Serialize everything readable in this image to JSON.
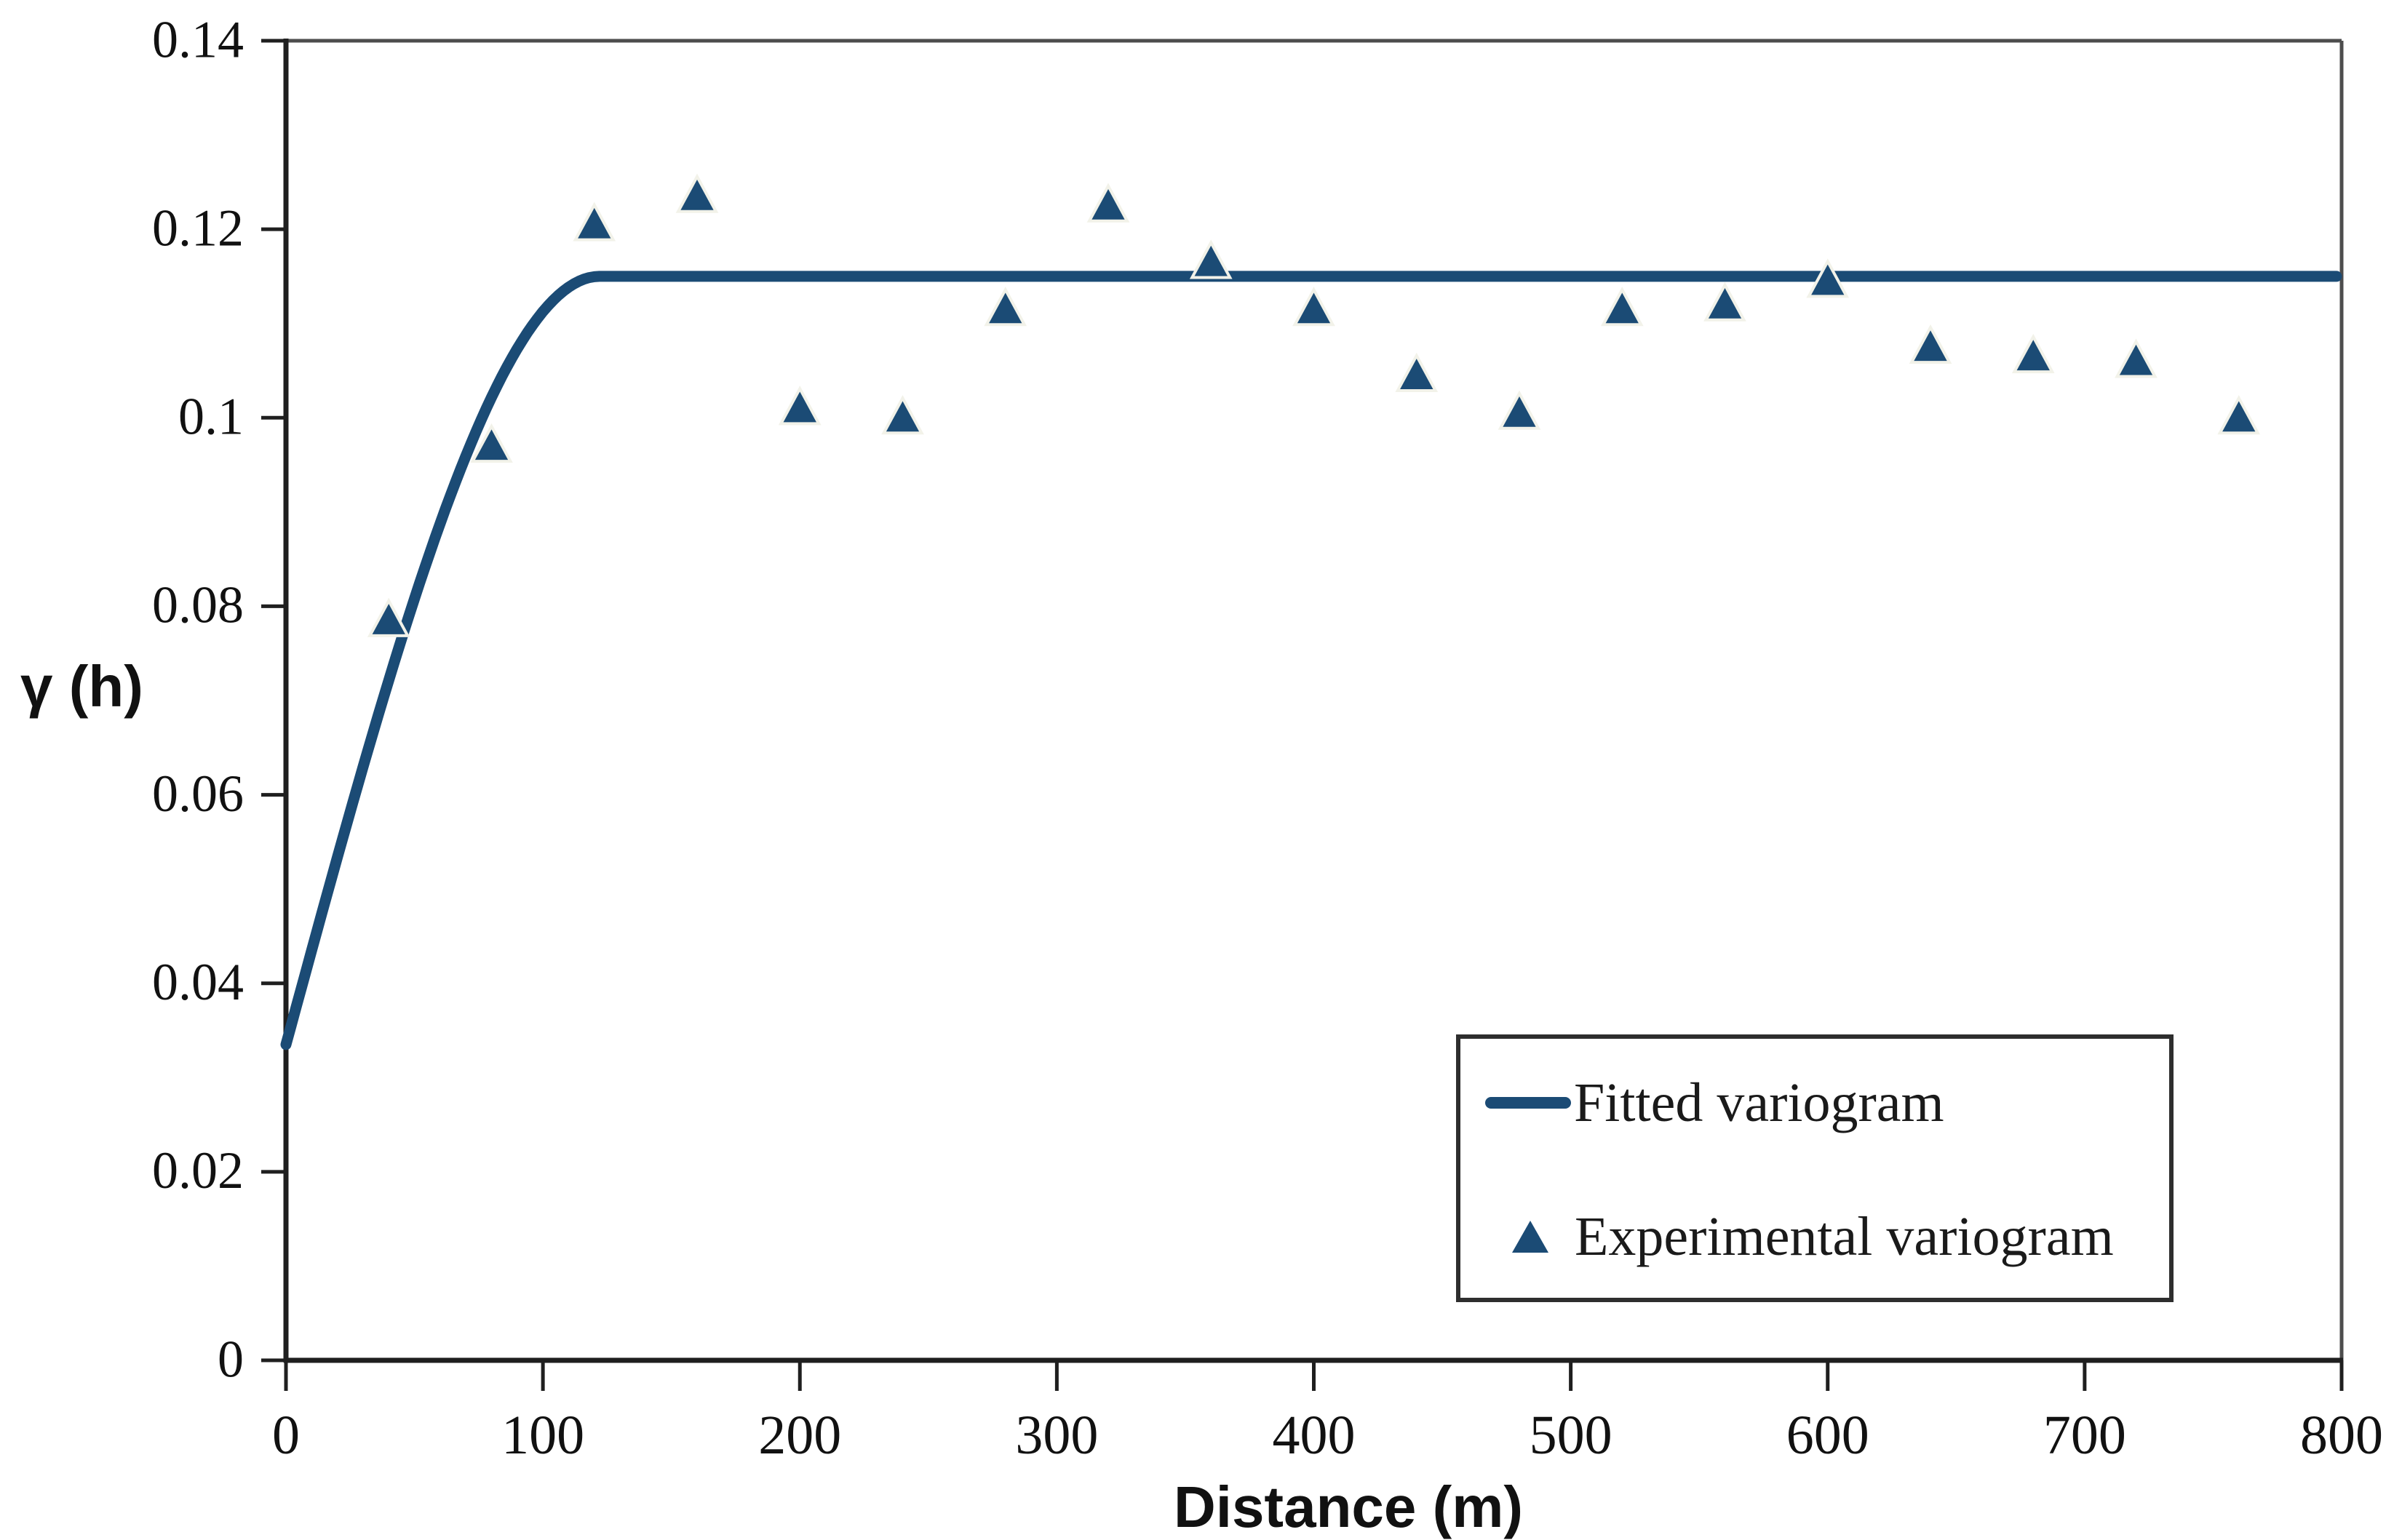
{
  "chart_data": {
    "type": "scatter",
    "title": "",
    "xlabel": "Distance (m)",
    "ylabel": "γ (h)",
    "xlim": [
      0,
      800
    ],
    "ylim": [
      0,
      0.14
    ],
    "grid": false,
    "x_tick_values": [
      0,
      100,
      200,
      300,
      400,
      500,
      600,
      700,
      800
    ],
    "x_tick_labels": [
      "0",
      "100",
      "200",
      "300",
      "400",
      "500",
      "600",
      "700",
      "800"
    ],
    "y_tick_values": [
      0,
      0.02,
      0.04,
      0.06,
      0.08,
      0.1,
      0.12,
      0.14
    ],
    "y_tick_labels": [
      "0",
      "0.02",
      "0.04",
      "0.06",
      "0.08",
      "0.1",
      "0.12",
      "0.14"
    ],
    "legend": {
      "position": "bottom-right",
      "entries": [
        {
          "label": "Fitted variogram",
          "marker": "line"
        },
        {
          "label": "Experimental variogram",
          "marker": "triangle"
        }
      ]
    },
    "series": [
      {
        "name": "Fitted variogram",
        "type": "line",
        "model": "spherical",
        "nugget": 0.0335,
        "sill": 0.115,
        "range_m": 122,
        "x_start": 0,
        "x_end": 798
      },
      {
        "name": "Experimental variogram",
        "type": "scatter",
        "marker": "triangle",
        "points": [
          [
            40,
            0.0785
          ],
          [
            80,
            0.097
          ],
          [
            120,
            0.1205
          ],
          [
            160,
            0.1235
          ],
          [
            200,
            0.101
          ],
          [
            240,
            0.1
          ],
          [
            280,
            0.1115
          ],
          [
            320,
            0.1225
          ],
          [
            360,
            0.1165
          ],
          [
            400,
            0.1115
          ],
          [
            440,
            0.1045
          ],
          [
            480,
            0.1005
          ],
          [
            520,
            0.1115
          ],
          [
            560,
            0.112
          ],
          [
            600,
            0.1145
          ],
          [
            640,
            0.1075
          ],
          [
            680,
            0.1065
          ],
          [
            720,
            0.106
          ],
          [
            760,
            0.1
          ]
        ]
      }
    ],
    "colors": {
      "line": "#1b4b75",
      "marker": "#1b4b75",
      "marker_halo": "#f2f2e9",
      "axis": "#1f1f1f",
      "frame": "#4d4d4d",
      "tick_text": "#111111"
    }
  }
}
